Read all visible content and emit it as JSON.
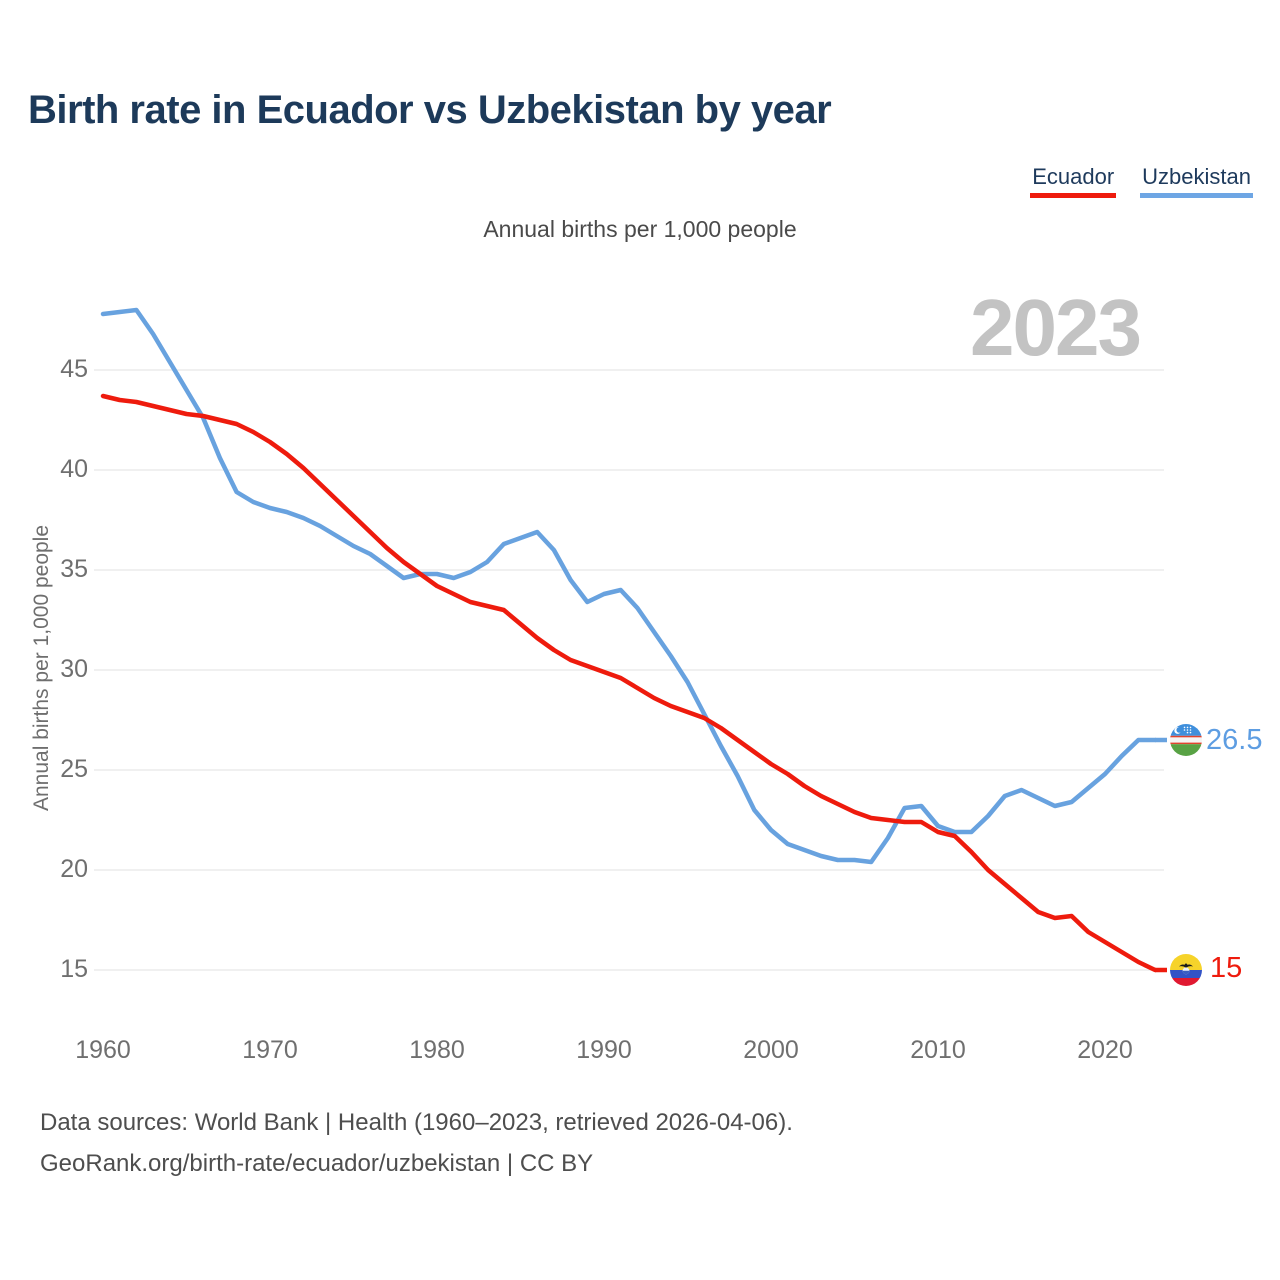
{
  "title": "Birth rate in Ecuador vs Uzbekistan by year",
  "subtitle": "Annual births per 1,000 people",
  "y_axis_label": "Annual births per 1,000 people",
  "watermark": "2023",
  "legend": [
    {
      "label": "Ecuador",
      "color": "#ee1b0d"
    },
    {
      "label": "Uzbekistan",
      "color": "#6ea6e4"
    }
  ],
  "end_labels": {
    "uzbekistan": "26.5",
    "ecuador": "15"
  },
  "footer": {
    "line1": "Data sources: World Bank | Health (1960–2023, retrieved 2026-04-06).",
    "line2": "GeoRank.org/birth-rate/ecuador/uzbekistan | CC BY"
  },
  "colors": {
    "ecuador_line": "#ee1b0d",
    "uzbekistan_line": "#68a2df",
    "gridline": "#e8e8e8",
    "title_text": "#1d3a5a",
    "watermark_text": "#c3c3c3"
  },
  "chart_data": {
    "type": "line",
    "title": "Birth rate in Ecuador vs Uzbekistan by year",
    "subtitle": "Annual births per 1,000 people",
    "xlabel": "",
    "ylabel": "Annual births per 1,000 people",
    "x_ticks": [
      1960,
      1970,
      1980,
      1990,
      2000,
      2010,
      2020
    ],
    "y_ticks": [
      15,
      20,
      25,
      30,
      35,
      40,
      45
    ],
    "ylim": [
      13,
      49
    ],
    "xlim": [
      1960,
      2023
    ],
    "grid": "horizontal",
    "legend_position": "top-right",
    "x": [
      1960,
      1961,
      1962,
      1963,
      1964,
      1965,
      1966,
      1967,
      1968,
      1969,
      1970,
      1971,
      1972,
      1973,
      1974,
      1975,
      1976,
      1977,
      1978,
      1979,
      1980,
      1981,
      1982,
      1983,
      1984,
      1985,
      1986,
      1987,
      1988,
      1989,
      1990,
      1991,
      1992,
      1993,
      1994,
      1995,
      1996,
      1997,
      1998,
      1999,
      2000,
      2001,
      2002,
      2003,
      2004,
      2005,
      2006,
      2007,
      2008,
      2009,
      2010,
      2011,
      2012,
      2013,
      2014,
      2015,
      2016,
      2017,
      2018,
      2019,
      2020,
      2021,
      2022,
      2023
    ],
    "series": [
      {
        "name": "Uzbekistan",
        "color": "#68a2df",
        "end_value_label": "26.5",
        "values": [
          47.8,
          47.9,
          48.0,
          46.8,
          45.4,
          44.0,
          42.6,
          40.6,
          38.9,
          38.4,
          38.1,
          37.9,
          37.6,
          37.2,
          36.7,
          36.2,
          35.8,
          35.2,
          34.6,
          34.8,
          34.8,
          34.6,
          34.9,
          35.4,
          36.3,
          36.6,
          36.9,
          36.0,
          34.5,
          33.4,
          33.8,
          34.0,
          33.1,
          31.9,
          30.7,
          29.4,
          27.8,
          26.2,
          24.7,
          23.0,
          22.0,
          21.3,
          21.0,
          20.7,
          20.5,
          20.5,
          20.4,
          21.6,
          23.1,
          23.2,
          22.2,
          21.9,
          21.9,
          22.7,
          23.7,
          24.0,
          23.6,
          23.2,
          23.4,
          24.1,
          24.8,
          25.7,
          26.5,
          26.5
        ]
      },
      {
        "name": "Ecuador",
        "color": "#ee1b0d",
        "end_value_label": "15",
        "values": [
          43.7,
          43.5,
          43.4,
          43.2,
          43.0,
          42.8,
          42.7,
          42.5,
          42.3,
          41.9,
          41.4,
          40.8,
          40.1,
          39.3,
          38.5,
          37.7,
          36.9,
          36.1,
          35.4,
          34.8,
          34.2,
          33.8,
          33.4,
          33.2,
          33.0,
          32.3,
          31.6,
          31.0,
          30.5,
          30.2,
          29.9,
          29.6,
          29.1,
          28.6,
          28.2,
          27.9,
          27.6,
          27.1,
          26.5,
          25.9,
          25.3,
          24.8,
          24.2,
          23.7,
          23.3,
          22.9,
          22.6,
          22.5,
          22.4,
          22.4,
          21.9,
          21.7,
          20.9,
          20.0,
          19.3,
          18.6,
          17.9,
          17.6,
          17.7,
          16.9,
          16.4,
          15.9,
          15.4,
          15.0
        ]
      }
    ]
  }
}
